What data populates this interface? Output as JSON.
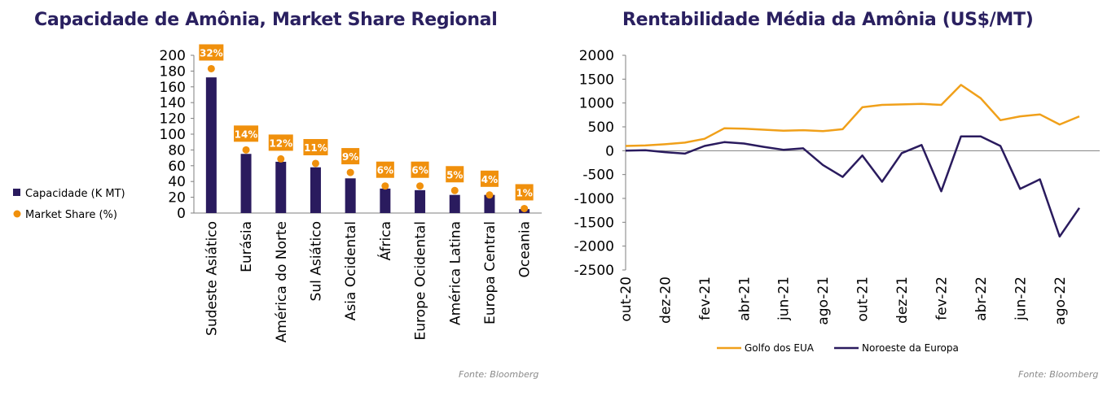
{
  "chart_data": [
    {
      "type": "bar",
      "title": "Capacidade de Amônia, Market Share Regional",
      "categories": [
        "Sudeste Asiático",
        "Eurásia",
        "América do Norte",
        "Sul Asiático",
        "Asia Ocidental",
        "África",
        "Europe Ocidental",
        "América Latina",
        "Europa Central",
        "Oceania"
      ],
      "series": [
        {
          "name": "Capacidade (K MT)",
          "color": "#2a1b5e",
          "values": [
            172,
            75,
            65,
            58,
            44,
            31,
            29,
            23,
            23,
            5
          ]
        },
        {
          "name": "Market Share (%)",
          "color": "#f0900c",
          "type": "scatter",
          "values": [
            32,
            14,
            12,
            11,
            9,
            6,
            6,
            5,
            4,
            1
          ],
          "labels": [
            "32%",
            "14%",
            "12%",
            "11%",
            "9%",
            "6%",
            "6%",
            "5%",
            "4%",
            "1%"
          ]
        }
      ],
      "ylim": [
        0,
        200
      ],
      "yticks": [
        "200",
        "180",
        "160",
        "140",
        "120",
        "100",
        "80",
        "60",
        "40",
        "20",
        "0"
      ],
      "legend": "left",
      "source": "Fonte: Bloomberg"
    },
    {
      "type": "line",
      "title": "Rentabilidade Média da Amônia (US$/MT)",
      "x": [
        "out-20",
        "nov-20",
        "dez-20",
        "jan-21",
        "fev-21",
        "mar-21",
        "abr-21",
        "mai-21",
        "jun-21",
        "jul-21",
        "ago-21",
        "set-21",
        "out-21",
        "nov-21",
        "dez-21",
        "jan-22",
        "fev-22",
        "mar-22",
        "abr-22",
        "mai-22",
        "jun-22",
        "jul-22",
        "ago-22",
        "set-22"
      ],
      "xticks": [
        "out-20",
        "dez-20",
        "fev-21",
        "abr-21",
        "jun-21",
        "ago-21",
        "out-21",
        "dez-21",
        "fev-22",
        "abr-22",
        "jun-22",
        "ago-22"
      ],
      "series": [
        {
          "name": "Golfo dos EUA",
          "color": "#f0a01a",
          "values": [
            100,
            110,
            135,
            170,
            250,
            470,
            460,
            440,
            420,
            430,
            410,
            450,
            910,
            960,
            970,
            980,
            960,
            1380,
            1100,
            640,
            720,
            760,
            550,
            720
          ]
        },
        {
          "name": "Noroeste da Europa",
          "color": "#2a1b5e",
          "values": [
            0,
            10,
            -30,
            -60,
            100,
            180,
            150,
            80,
            20,
            50,
            -300,
            -550,
            -100,
            -650,
            -50,
            120,
            -850,
            300,
            300,
            100,
            -800,
            -600,
            -1800,
            -1200
          ]
        }
      ],
      "ylim": [
        -2500,
        2000
      ],
      "yticks": [
        "2000",
        "1500",
        "1000",
        "500",
        "0",
        "-500",
        "-1000",
        "-1500",
        "-2000",
        "-2500"
      ],
      "legend": "bottom",
      "source": "Fonte: Bloomberg"
    }
  ]
}
